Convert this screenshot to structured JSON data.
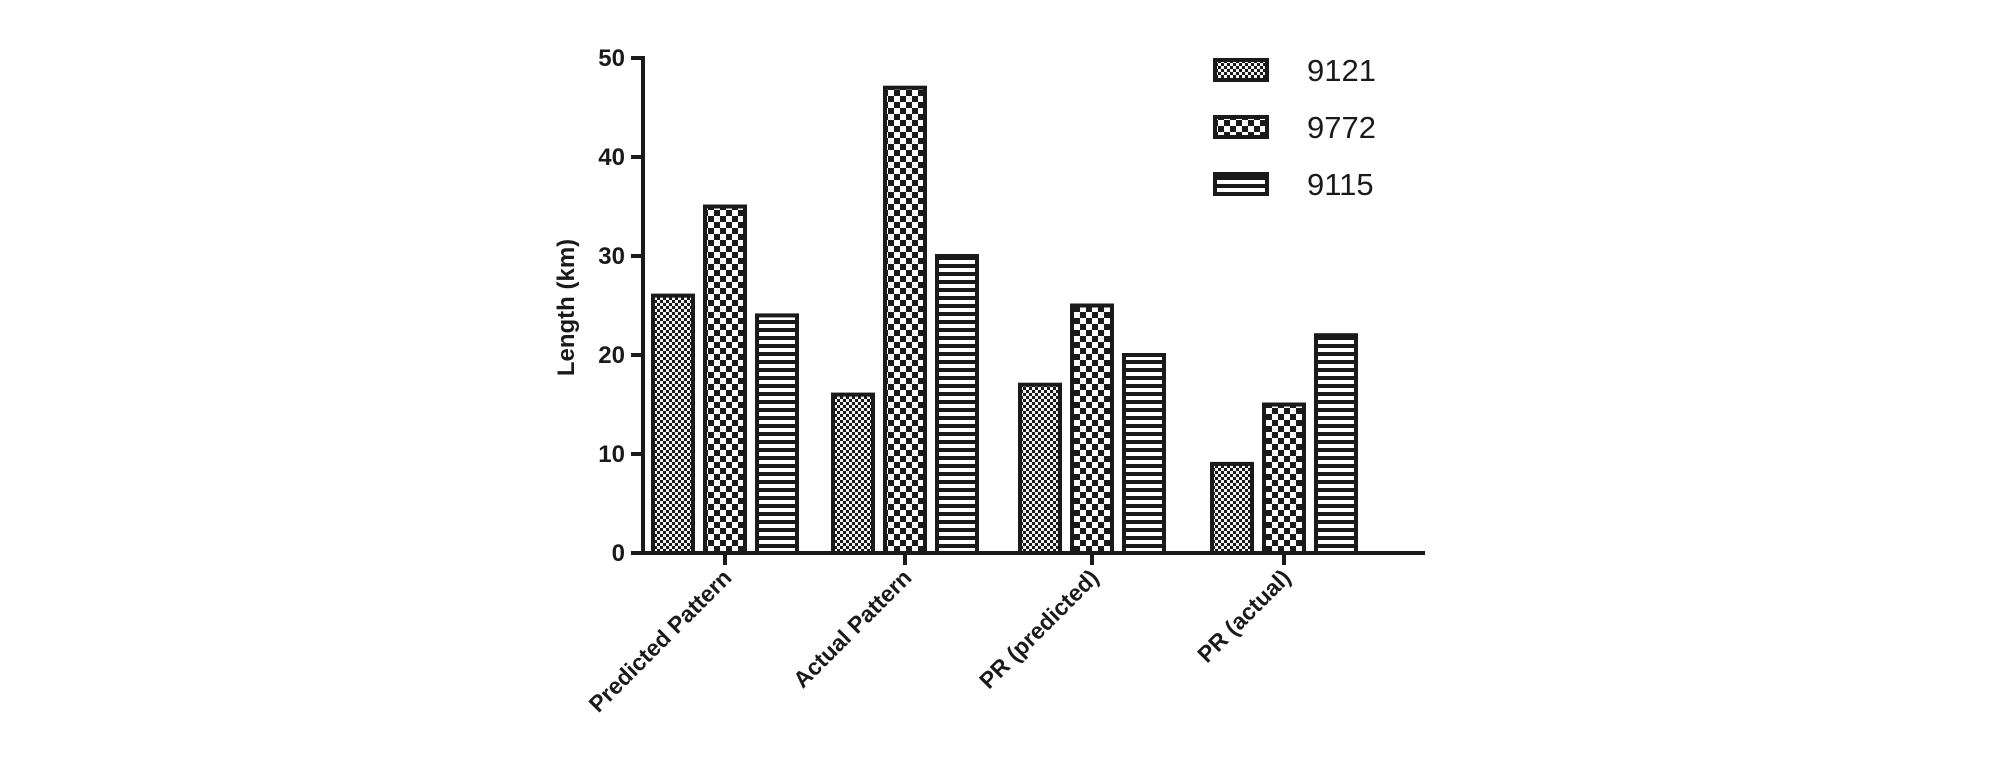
{
  "chart_data": {
    "type": "bar",
    "title": "",
    "xlabel": "",
    "ylabel": "Length (km)",
    "ylim": [
      0,
      50
    ],
    "yticks": [
      "0",
      "10",
      "20",
      "30",
      "40",
      "50"
    ],
    "categories": [
      "Predicted Pattern",
      "Actual Pattern",
      "PR (predicted)",
      "PR (actual)"
    ],
    "series": [
      {
        "name": "9121",
        "values": [
          26,
          16,
          17,
          9
        ],
        "pattern": "fine-checker"
      },
      {
        "name": "9772",
        "values": [
          35,
          47,
          25,
          15
        ],
        "pattern": "coarse-checker"
      },
      {
        "name": "9115",
        "values": [
          24,
          30,
          20,
          22
        ],
        "pattern": "horizontal-stripes"
      }
    ],
    "grid": false,
    "legend_position": "top-right",
    "colors": {
      "ink": "#1a1a1a",
      "background": "#ffffff"
    }
  }
}
